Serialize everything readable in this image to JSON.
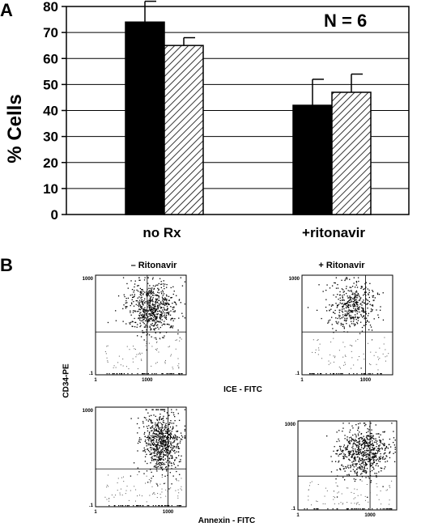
{
  "panels": {
    "a_label": "A",
    "b_label": "B"
  },
  "chart_data": [
    {
      "type": "bar",
      "title": "",
      "ylabel": "% Cells",
      "xlabel": "",
      "ylim": [
        0,
        80
      ],
      "yticks": [
        0,
        10,
        20,
        30,
        40,
        50,
        60,
        70,
        80
      ],
      "categories": [
        "no Rx",
        "+ritonavir"
      ],
      "series": [
        {
          "fill": "solid-black",
          "values": [
            74,
            42
          ],
          "error": [
            8,
            10
          ]
        },
        {
          "fill": "diagonal-hatch",
          "values": [
            65,
            47
          ],
          "error": [
            3,
            7
          ]
        }
      ],
      "annotation": "N = 6",
      "grid": true
    }
  ],
  "flow_panels": {
    "col_labels": [
      "– Ritonavir",
      "+ Ritonavir"
    ],
    "y_axis_label": "CD34-PE",
    "row1_x_label": "ICE - FITC",
    "row2_x_label": "Annexin - FITC",
    "axis_min": ".1",
    "axis_max": "1000",
    "axis_min_x": "1"
  },
  "colors": {
    "bar_solid": "#000000",
    "background": "#ffffff",
    "grid": "#000000"
  }
}
